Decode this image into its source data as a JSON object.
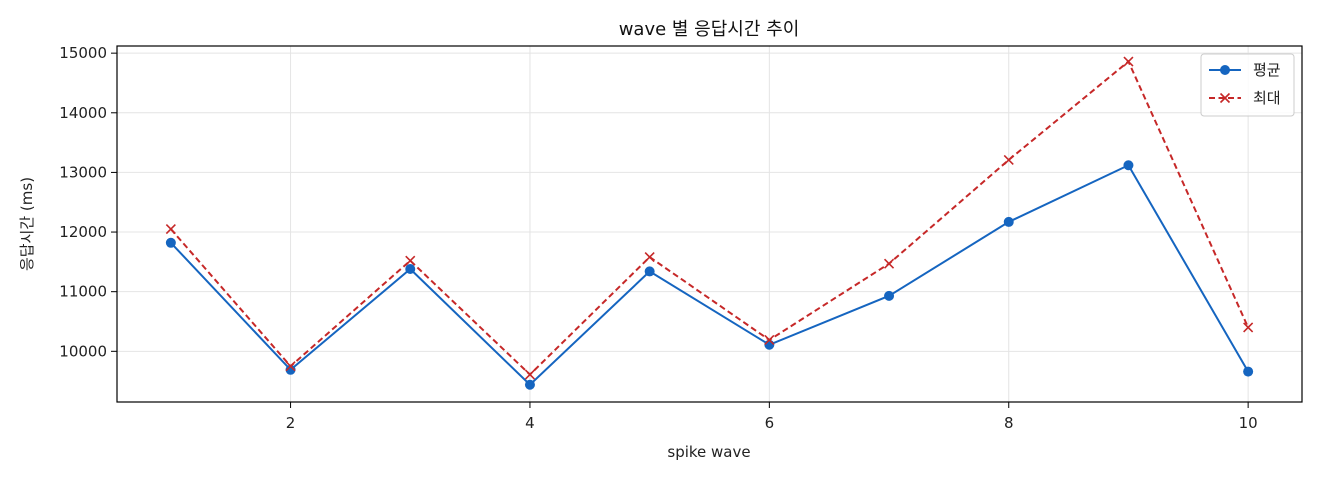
{
  "chart_data": {
    "type": "line",
    "title": "wave 별 응답시간 추이",
    "xlabel": "spike wave",
    "ylabel": "응답시간 (ms)",
    "x": [
      1,
      2,
      3,
      4,
      5,
      6,
      7,
      8,
      9,
      10
    ],
    "xlim": [
      0.55,
      10.45
    ],
    "ylim": [
      9150,
      15120
    ],
    "xticks": [
      2,
      4,
      6,
      8,
      10
    ],
    "yticks": [
      10000,
      11000,
      12000,
      13000,
      14000,
      15000
    ],
    "grid": true,
    "legend_position": "top-right",
    "series": [
      {
        "name": "평균",
        "color": "#1565c0",
        "line_style": "solid",
        "marker": "circle",
        "values": [
          11820,
          9690,
          11380,
          9440,
          11340,
          10110,
          10930,
          12170,
          13120,
          9660
        ]
      },
      {
        "name": "최대",
        "color": "#c62828",
        "line_style": "dashed",
        "marker": "x",
        "values": [
          12050,
          9750,
          11520,
          9610,
          11580,
          10190,
          11470,
          13210,
          14860,
          10400
        ]
      }
    ]
  }
}
